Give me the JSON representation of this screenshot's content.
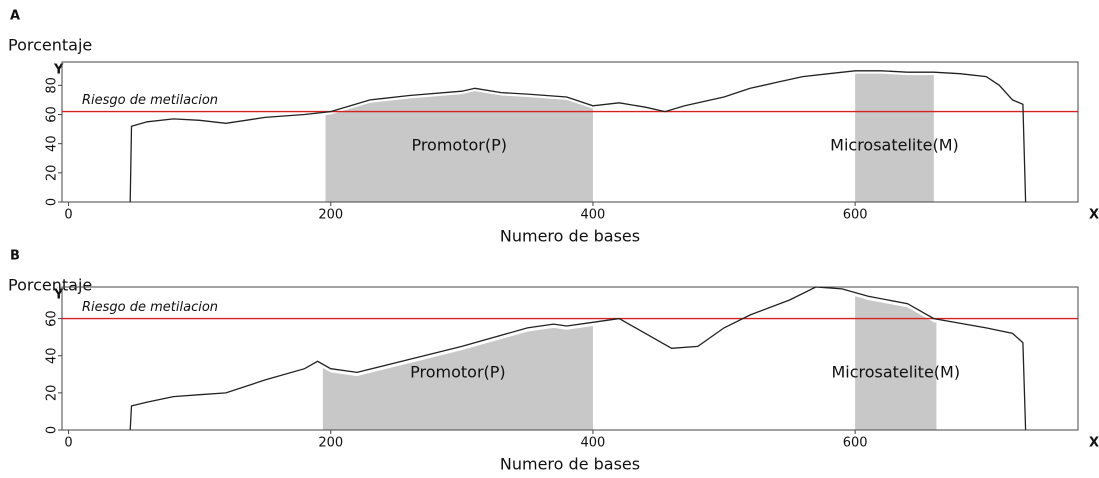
{
  "chart_data": [
    {
      "type": "line",
      "label": "A",
      "y_label": "Porcentaje",
      "y_axis_letter": "Y",
      "x_label": "Numero de bases",
      "x_axis_letter": "X",
      "x": [
        47,
        48,
        60,
        80,
        100,
        120,
        150,
        180,
        200,
        215,
        230,
        260,
        300,
        310,
        330,
        350,
        380,
        400,
        420,
        440,
        455,
        470,
        500,
        520,
        540,
        560,
        580,
        600,
        620,
        640,
        660,
        680,
        700,
        710,
        720,
        728,
        730
      ],
      "values": [
        0,
        52,
        55,
        57,
        56,
        54,
        58,
        60,
        62,
        66,
        70,
        73,
        76,
        78,
        75,
        74,
        72,
        66,
        68,
        65,
        62,
        66,
        72,
        78,
        82,
        86,
        88,
        90,
        90,
        89,
        89,
        88,
        86,
        80,
        70,
        67,
        0
      ],
      "color": "#222222",
      "threshold": {
        "value": 62,
        "label": "Riesgo de metilacion",
        "color": "#d42020"
      },
      "regions": [
        {
          "label": "Promotor(P)",
          "start": 196,
          "end": 400
        },
        {
          "label": "Microsatelite(M)",
          "start": 600,
          "end": 660
        }
      ],
      "region_color": "#c8c8c8",
      "xlim": [
        -5,
        770
      ],
      "ylim": [
        0,
        96
      ],
      "xticks": [
        0,
        200,
        400,
        600
      ],
      "yticks": [
        0,
        20,
        40,
        60,
        80
      ]
    },
    {
      "type": "line",
      "label": "B",
      "y_label": "Porcentaje",
      "y_axis_letter": "Y",
      "x_label": "Numero de bases",
      "x_axis_letter": "X",
      "x": [
        47,
        48,
        60,
        80,
        100,
        120,
        150,
        180,
        190,
        200,
        220,
        260,
        300,
        350,
        370,
        380,
        400,
        420,
        440,
        460,
        480,
        500,
        520,
        550,
        570,
        590,
        610,
        640,
        660,
        700,
        720,
        728,
        730
      ],
      "values": [
        0,
        13,
        15,
        18,
        19,
        20,
        27,
        33,
        37,
        33,
        31,
        38,
        45,
        55,
        57,
        56,
        58,
        60,
        52,
        44,
        45,
        55,
        62,
        70,
        77,
        76,
        72,
        68,
        60,
        55,
        52,
        47,
        0
      ],
      "color": "#222222",
      "threshold": {
        "value": 60,
        "label": "Riesgo de metilacion",
        "color": "#d42020"
      },
      "regions": [
        {
          "label": "Promotor(P)",
          "start": 194,
          "end": 400
        },
        {
          "label": "Microsatelite(M)",
          "start": 600,
          "end": 662
        }
      ],
      "region_color": "#c8c8c8",
      "xlim": [
        -5,
        770
      ],
      "ylim": [
        0,
        77
      ],
      "xticks": [
        0,
        200,
        400,
        600
      ],
      "yticks": [
        0,
        20,
        40,
        60
      ]
    }
  ]
}
